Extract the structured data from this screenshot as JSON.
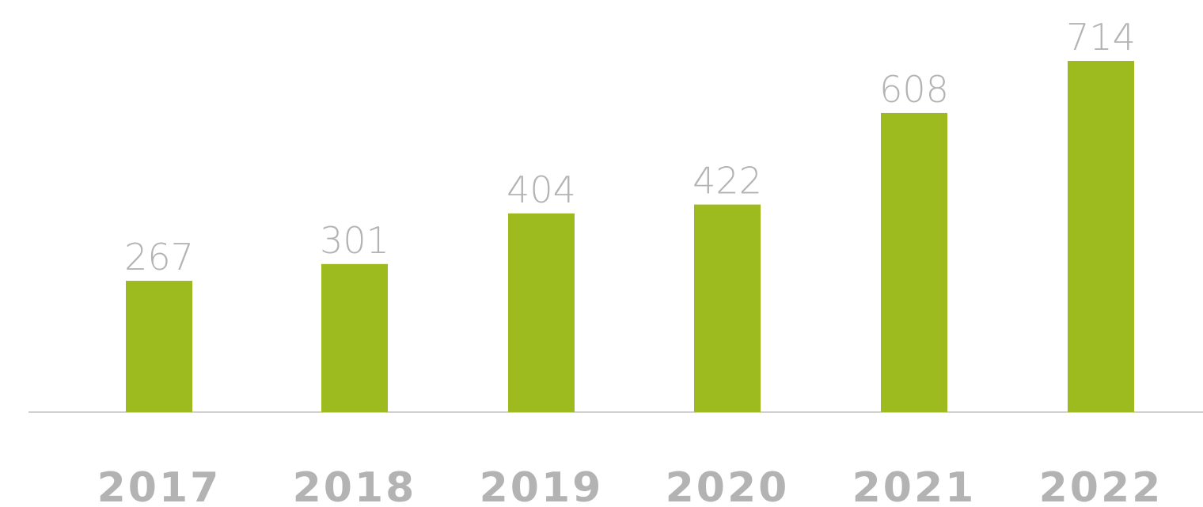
{
  "chart_data": {
    "type": "bar",
    "categories": [
      "2017",
      "2018",
      "2019",
      "2020",
      "2021",
      "2022"
    ],
    "values": [
      267,
      301,
      404,
      422,
      608,
      714
    ],
    "data_labels": [
      "267",
      "301",
      "404",
      "422",
      "608",
      "714"
    ],
    "title": "",
    "xlabel": "",
    "ylabel": "",
    "ylim": [
      0,
      714
    ],
    "grid": false,
    "legend": "none",
    "colors": {
      "bar": "#9dba1e",
      "label": "#b3b3b3",
      "axis": "#d0d0d0"
    }
  }
}
